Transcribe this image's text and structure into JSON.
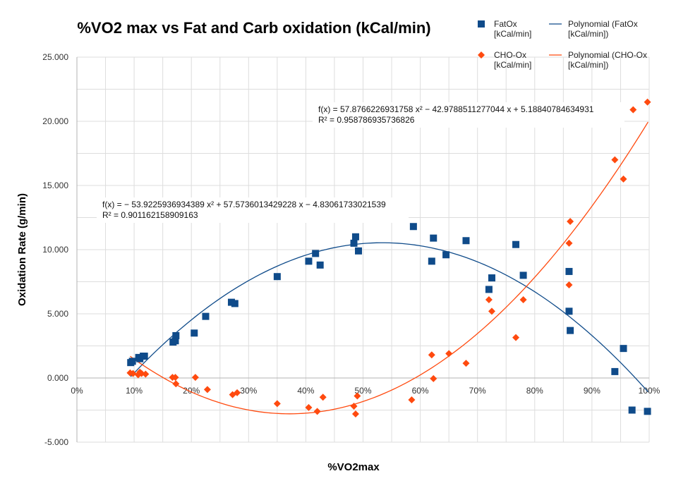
{
  "chart_data": {
    "type": "scatter",
    "title": "%VO2 max vs Fat and Carb oxidation (kCal/min)",
    "xlabel": "%VO2max",
    "ylabel": "Oxidation Rate (g/min)",
    "xlim": [
      0,
      1
    ],
    "ylim": [
      -5,
      25
    ],
    "x_ticks": [
      "0%",
      "10%",
      "20%",
      "30%",
      "40%",
      "50%",
      "60%",
      "70%",
      "80%",
      "90%",
      "100%"
    ],
    "y_ticks": [
      "25.000",
      "20.000",
      "15.000",
      "10.000",
      "5.000",
      "0.000",
      "-5.000"
    ],
    "grid": true,
    "legend_position": "top-right",
    "series": [
      {
        "name": "FatOx [kCal/min]",
        "color": "#0f4b8a",
        "marker": "square",
        "points": [
          [
            0.094,
            1.2
          ],
          [
            0.097,
            1.3
          ],
          [
            0.108,
            1.6
          ],
          [
            0.11,
            1.5
          ],
          [
            0.116,
            1.7
          ],
          [
            0.118,
            1.7
          ],
          [
            0.168,
            2.8
          ],
          [
            0.172,
            2.9
          ],
          [
            0.173,
            3.3
          ],
          [
            0.205,
            3.5
          ],
          [
            0.225,
            4.8
          ],
          [
            0.27,
            5.9
          ],
          [
            0.276,
            5.8
          ],
          [
            0.35,
            7.9
          ],
          [
            0.405,
            9.1
          ],
          [
            0.417,
            9.7
          ],
          [
            0.425,
            8.8
          ],
          [
            0.484,
            10.5
          ],
          [
            0.487,
            11.0
          ],
          [
            0.492,
            9.9
          ],
          [
            0.588,
            11.8
          ],
          [
            0.62,
            9.1
          ],
          [
            0.623,
            10.9
          ],
          [
            0.645,
            9.6
          ],
          [
            0.68,
            10.7
          ],
          [
            0.72,
            6.9
          ],
          [
            0.725,
            7.8
          ],
          [
            0.767,
            10.4
          ],
          [
            0.78,
            8.0
          ],
          [
            0.86,
            8.3
          ],
          [
            0.86,
            5.2
          ],
          [
            0.862,
            3.7
          ],
          [
            0.94,
            0.5
          ],
          [
            0.955,
            2.3
          ],
          [
            0.97,
            -2.5
          ],
          [
            0.997,
            -2.6
          ]
        ]
      },
      {
        "name": "CHO-Ox [kCal/min]",
        "color": "#ff4a0f",
        "marker": "diamond",
        "points": [
          [
            0.093,
            0.4
          ],
          [
            0.098,
            0.35
          ],
          [
            0.107,
            0.25
          ],
          [
            0.11,
            0.45
          ],
          [
            0.113,
            0.35
          ],
          [
            0.12,
            0.3
          ],
          [
            0.167,
            0.05
          ],
          [
            0.172,
            0.05
          ],
          [
            0.173,
            -0.45
          ],
          [
            0.207,
            0.05
          ],
          [
            0.228,
            -0.9
          ],
          [
            0.272,
            -1.3
          ],
          [
            0.28,
            -1.15
          ],
          [
            0.35,
            -2.0
          ],
          [
            0.405,
            -2.3
          ],
          [
            0.42,
            -2.6
          ],
          [
            0.43,
            -1.5
          ],
          [
            0.484,
            -2.2
          ],
          [
            0.487,
            -2.8
          ],
          [
            0.49,
            -1.4
          ],
          [
            0.585,
            -1.7
          ],
          [
            0.62,
            1.8
          ],
          [
            0.623,
            -0.05
          ],
          [
            0.65,
            1.9
          ],
          [
            0.68,
            1.15
          ],
          [
            0.72,
            6.1
          ],
          [
            0.725,
            5.2
          ],
          [
            0.767,
            3.15
          ],
          [
            0.78,
            6.1
          ],
          [
            0.86,
            10.5
          ],
          [
            0.862,
            12.2
          ],
          [
            0.86,
            7.25
          ],
          [
            0.94,
            17.0
          ],
          [
            0.955,
            15.5
          ],
          [
            0.972,
            20.9
          ],
          [
            0.997,
            21.5
          ]
        ]
      },
      {
        "name": "Polynomial (FatOx [kCal/min])",
        "color": "#0f4b8a",
        "type": "trendline",
        "coefficients": [
          -53.9225936934389,
          57.5736013429228,
          -4.83061733021539
        ],
        "x_range": [
          0.094,
          0.998
        ]
      },
      {
        "name": "Polynomial (CHO-Ox [kCal/min])",
        "color": "#ff4a0f",
        "type": "trendline",
        "coefficients": [
          57.8766226931758,
          -42.9788511277044,
          5.18840784634931
        ],
        "x_range": [
          0.093,
          0.998
        ]
      }
    ],
    "annotations": [
      {
        "line1": "f(x) = − 53.9225936934389 x² + 57.5736013429228 x − 4.83061733021539",
        "line2": "R² = 0.901162158909163"
      },
      {
        "line1": "f(x) = 57.8766226931758 x² − 42.9788511277044 x + 5.18840784634931",
        "line2": "R² = 0.958786935736826"
      }
    ],
    "legend": [
      {
        "line1": "FatOx",
        "line2": "[kCal/min]",
        "marker": "square",
        "color": "#0f4b8a"
      },
      {
        "line1": "Polynomial (FatOx",
        "line2": "[kCal/min])",
        "marker": "line",
        "color": "#0f4b8a"
      },
      {
        "line1": "CHO-Ox",
        "line2": "[kCal/min]",
        "marker": "diamond",
        "color": "#ff4a0f"
      },
      {
        "line1": "Polynomial (CHO-Ox",
        "line2": "[kCal/min])",
        "marker": "line",
        "color": "#ff4a0f"
      }
    ]
  }
}
